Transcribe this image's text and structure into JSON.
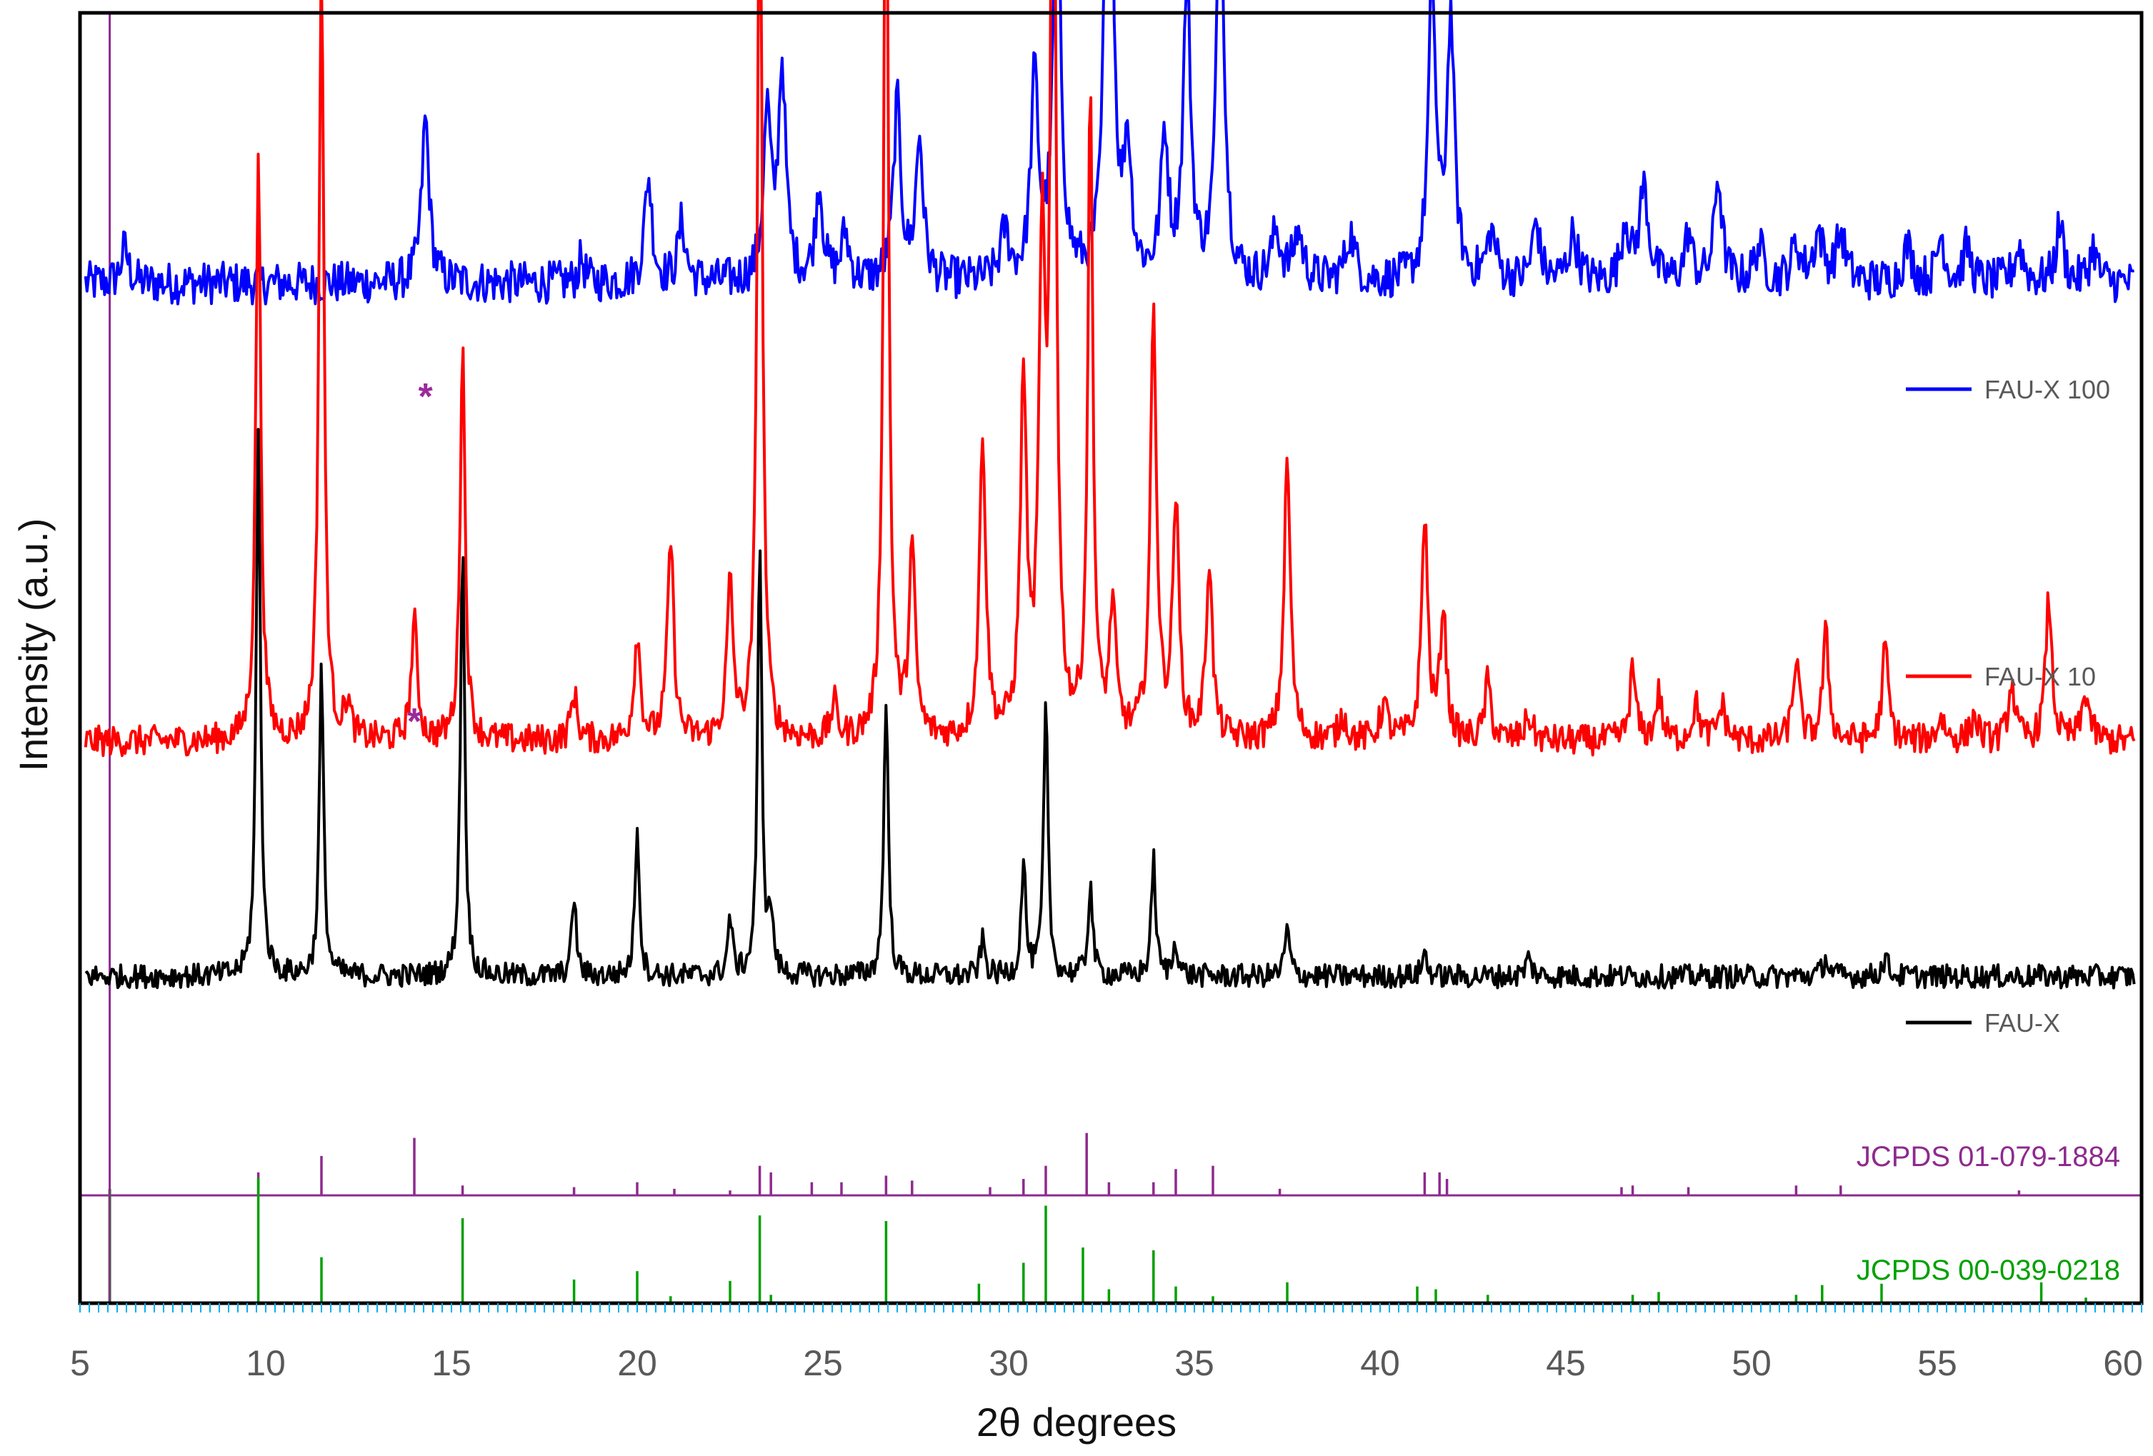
{
  "chart_data": {
    "type": "line",
    "xlabel": "2θ degrees",
    "ylabel": "Intensity (a.u.)",
    "xlim": [
      5,
      60.5
    ],
    "x_ticks": [
      "5",
      "10",
      "15",
      "20",
      "25",
      "30",
      "35",
      "40",
      "45",
      "50",
      "55",
      "60"
    ],
    "y_ticks_shown": false,
    "grid": false,
    "legend_placement": "right, beside each trace",
    "series": [
      {
        "name": "FAU-X 100",
        "color": "#0000ff",
        "baseline": 78,
        "noise": 1.8,
        "peaks": [
          [
            6.2,
            3,
            0.12
          ],
          [
            14.3,
            14,
            0.12
          ],
          [
            18.5,
            2,
            0.1
          ],
          [
            20.3,
            9,
            0.12
          ],
          [
            21.2,
            5,
            0.12
          ],
          [
            23.5,
            14,
            0.12
          ],
          [
            23.9,
            18,
            0.12
          ],
          [
            24.9,
            8,
            0.12
          ],
          [
            25.6,
            4,
            0.12
          ],
          [
            27.0,
            15,
            0.12
          ],
          [
            27.6,
            12,
            0.12
          ],
          [
            29.9,
            4,
            0.14
          ],
          [
            30.7,
            17,
            0.12
          ],
          [
            31.3,
            35,
            0.12
          ],
          [
            32.7,
            68,
            0.1
          ],
          [
            33.2,
            11,
            0.12
          ],
          [
            34.2,
            12,
            0.12
          ],
          [
            34.8,
            25,
            0.12
          ],
          [
            35.7,
            35,
            0.12
          ],
          [
            37.2,
            4,
            0.15
          ],
          [
            37.8,
            4,
            0.15
          ],
          [
            39.2,
            4,
            0.15
          ],
          [
            41.4,
            25,
            0.12
          ],
          [
            41.9,
            22,
            0.12
          ],
          [
            43.0,
            4,
            0.15
          ],
          [
            44.2,
            5,
            0.12
          ],
          [
            45.2,
            4,
            0.15
          ],
          [
            46.6,
            5,
            0.12
          ],
          [
            47.1,
            8,
            0.15
          ],
          [
            48.3,
            4,
            0.12
          ],
          [
            49.1,
            9,
            0.12
          ],
          [
            50.2,
            3,
            0.15
          ],
          [
            51.2,
            3,
            0.15
          ],
          [
            51.8,
            4,
            0.15
          ],
          [
            52.4,
            4,
            0.15
          ],
          [
            54.2,
            3,
            0.15
          ],
          [
            55.1,
            4,
            0.12
          ],
          [
            55.8,
            3,
            0.12
          ],
          [
            57.2,
            3,
            0.15
          ],
          [
            58.3,
            5,
            0.12
          ],
          [
            59.2,
            3,
            0.12
          ]
        ]
      },
      {
        "name": "FAU-X 10",
        "color": "#ff0000",
        "baseline": 39,
        "noise": 1.3,
        "peaks": [
          [
            9.8,
            50,
            0.08
          ],
          [
            11.5,
            67,
            0.08
          ],
          [
            12.2,
            3,
            0.1
          ],
          [
            14.0,
            10,
            0.1
          ],
          [
            15.3,
            34,
            0.08
          ],
          [
            18.3,
            4,
            0.1
          ],
          [
            20.0,
            9,
            0.1
          ],
          [
            20.9,
            17,
            0.1
          ],
          [
            22.5,
            13,
            0.1
          ],
          [
            23.3,
            78,
            0.08
          ],
          [
            25.3,
            3,
            0.1
          ],
          [
            26.7,
            82,
            0.08
          ],
          [
            27.4,
            16,
            0.1
          ],
          [
            29.3,
            26,
            0.1
          ],
          [
            30.4,
            30,
            0.1
          ],
          [
            30.9,
            40,
            0.1
          ],
          [
            31.2,
            96,
            0.08
          ],
          [
            32.2,
            55,
            0.08
          ],
          [
            32.8,
            11,
            0.1
          ],
          [
            33.9,
            36,
            0.1
          ],
          [
            34.5,
            20,
            0.1
          ],
          [
            35.4,
            15,
            0.1
          ],
          [
            37.5,
            24,
            0.1
          ],
          [
            39.0,
            2,
            0.12
          ],
          [
            40.1,
            3,
            0.12
          ],
          [
            41.2,
            19,
            0.1
          ],
          [
            41.7,
            11,
            0.1
          ],
          [
            42.9,
            5,
            0.1
          ],
          [
            44.0,
            2,
            0.12
          ],
          [
            46.8,
            6,
            0.1
          ],
          [
            47.5,
            4,
            0.1
          ],
          [
            48.5,
            3,
            0.12
          ],
          [
            49.2,
            3,
            0.12
          ],
          [
            51.2,
            7,
            0.1
          ],
          [
            52.0,
            9,
            0.1
          ],
          [
            53.6,
            8,
            0.1
          ],
          [
            55.1,
            2,
            0.12
          ],
          [
            56.0,
            2,
            0.12
          ],
          [
            57.0,
            5,
            0.1
          ],
          [
            58.0,
            12,
            0.1
          ],
          [
            59.0,
            4,
            0.12
          ]
        ]
      },
      {
        "name": "FAU-X",
        "color": "#000000",
        "baseline": 19,
        "noise": 1.0,
        "peaks": [
          [
            9.8,
            46,
            0.07
          ],
          [
            11.5,
            26,
            0.07
          ],
          [
            15.3,
            37,
            0.07
          ],
          [
            18.3,
            7,
            0.07
          ],
          [
            20.0,
            13,
            0.07
          ],
          [
            22.5,
            5,
            0.07
          ],
          [
            23.3,
            36,
            0.07
          ],
          [
            23.6,
            5,
            0.07
          ],
          [
            26.7,
            24,
            0.07
          ],
          [
            29.3,
            3,
            0.08
          ],
          [
            30.4,
            10,
            0.07
          ],
          [
            31.0,
            23,
            0.07
          ],
          [
            32.2,
            8,
            0.07
          ],
          [
            33.9,
            10,
            0.07
          ],
          [
            34.5,
            3,
            0.08
          ],
          [
            37.5,
            4,
            0.08
          ],
          [
            41.2,
            2,
            0.08
          ],
          [
            44.0,
            1.5,
            0.1
          ],
          [
            52.0,
            1.5,
            0.1
          ],
          [
            53.6,
            1.5,
            0.1
          ]
        ]
      }
    ],
    "reference_patterns": [
      {
        "name": "JCPDS 01-079-1884",
        "color": "#8e2a8e",
        "lines": [
          [
            9.8,
            1.4
          ],
          [
            11.5,
            2.4
          ],
          [
            14.0,
            3.5
          ],
          [
            15.3,
            0.6
          ],
          [
            18.3,
            0.5
          ],
          [
            20.0,
            0.8
          ],
          [
            21.0,
            0.4
          ],
          [
            22.5,
            0.3
          ],
          [
            23.3,
            1.8
          ],
          [
            23.6,
            1.4
          ],
          [
            24.7,
            0.8
          ],
          [
            25.5,
            0.8
          ],
          [
            26.7,
            1.2
          ],
          [
            27.4,
            0.9
          ],
          [
            29.5,
            0.5
          ],
          [
            30.4,
            1.0
          ],
          [
            31.0,
            1.8
          ],
          [
            32.1,
            3.8
          ],
          [
            32.7,
            0.8
          ],
          [
            33.9,
            0.8
          ],
          [
            34.5,
            1.6
          ],
          [
            35.5,
            1.8
          ],
          [
            37.3,
            0.4
          ],
          [
            41.2,
            1.4
          ],
          [
            41.6,
            1.4
          ],
          [
            41.8,
            1.0
          ],
          [
            46.5,
            0.5
          ],
          [
            46.8,
            0.6
          ],
          [
            48.3,
            0.5
          ],
          [
            51.2,
            0.6
          ],
          [
            52.4,
            0.6
          ],
          [
            57.2,
            0.3
          ]
        ]
      },
      {
        "name": "JCPDS 00-039-0218",
        "color": "#00a000",
        "lines": [
          [
            5.8,
            10.0
          ],
          [
            9.8,
            9.0
          ],
          [
            11.5,
            3.3
          ],
          [
            15.3,
            6.1
          ],
          [
            18.3,
            1.7
          ],
          [
            20.0,
            2.3
          ],
          [
            20.9,
            0.5
          ],
          [
            22.5,
            1.6
          ],
          [
            23.3,
            6.3
          ],
          [
            23.6,
            0.6
          ],
          [
            26.7,
            5.9
          ],
          [
            29.2,
            1.4
          ],
          [
            30.4,
            2.9
          ],
          [
            31.0,
            7.0
          ],
          [
            32.0,
            4.0
          ],
          [
            32.7,
            1.0
          ],
          [
            33.9,
            3.8
          ],
          [
            34.5,
            1.2
          ],
          [
            35.5,
            0.5
          ],
          [
            37.5,
            1.5
          ],
          [
            41.0,
            1.2
          ],
          [
            41.5,
            1.0
          ],
          [
            42.9,
            0.6
          ],
          [
            46.8,
            0.6
          ],
          [
            47.5,
            0.8
          ],
          [
            51.2,
            0.6
          ],
          [
            51.9,
            1.3
          ],
          [
            53.5,
            1.4
          ],
          [
            57.8,
            1.5
          ],
          [
            59.0,
            0.4
          ]
        ]
      }
    ],
    "impurity_marker": "*",
    "impurity_markers": [
      [
        14.3,
        "FAU-X 100"
      ],
      [
        14.0,
        "FAU-X 10"
      ]
    ],
    "vertical_line_x": 5.8,
    "ylim": [
      0,
      100
    ]
  },
  "colors": {
    "impurity_marker": "#9b2a9b",
    "reference_vertical_line": "#8e2a8e",
    "frame": "#000000",
    "minor_ticks": "#00b0f0"
  }
}
